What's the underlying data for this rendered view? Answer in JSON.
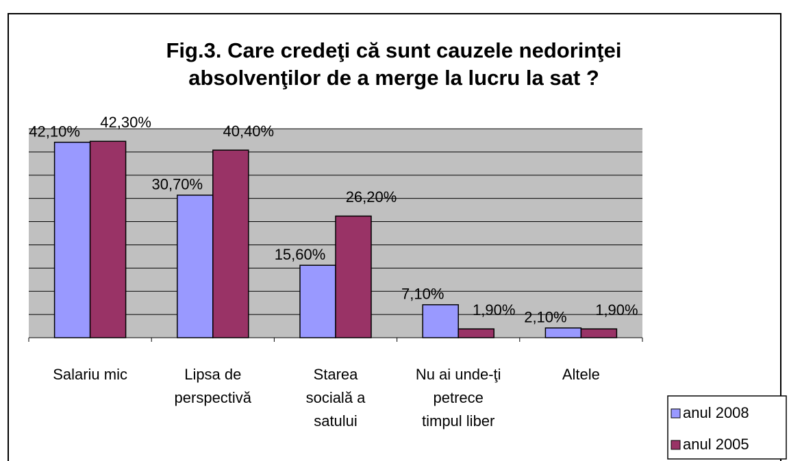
{
  "chart_data": {
    "type": "bar",
    "title": [
      "Fig.3. Care credeţi că sunt cauzele nedorinţei",
      "absolvenţilor de a merge la lucru la sat ?"
    ],
    "categories": [
      [
        "Salariu mic"
      ],
      [
        "Lipsa de",
        "perspectivă"
      ],
      [
        "Starea",
        "socială a",
        "satului"
      ],
      [
        "Nu ai unde-ţi",
        "petrece",
        "timpul liber"
      ],
      [
        "Altele"
      ]
    ],
    "series": [
      {
        "name": "anul 2008",
        "color": "#9999ff",
        "values": [
          42.1,
          30.7,
          15.6,
          7.1,
          2.1
        ],
        "value_labels": [
          "42,10%",
          "30,70%",
          "15,60%",
          "7,10%",
          "2,10%"
        ]
      },
      {
        "name": "anul 2005",
        "color": "#993366",
        "values": [
          42.3,
          40.4,
          26.2,
          1.9,
          1.9
        ],
        "value_labels": [
          "42,30%",
          "40,40%",
          "26,20%",
          "1,90%",
          "1,90%"
        ]
      }
    ],
    "ylim": [
      0,
      45
    ],
    "yticks": [
      0,
      5,
      10,
      15,
      20,
      25,
      30,
      35,
      40,
      45
    ],
    "grid": true,
    "legend": "bottom-right"
  }
}
